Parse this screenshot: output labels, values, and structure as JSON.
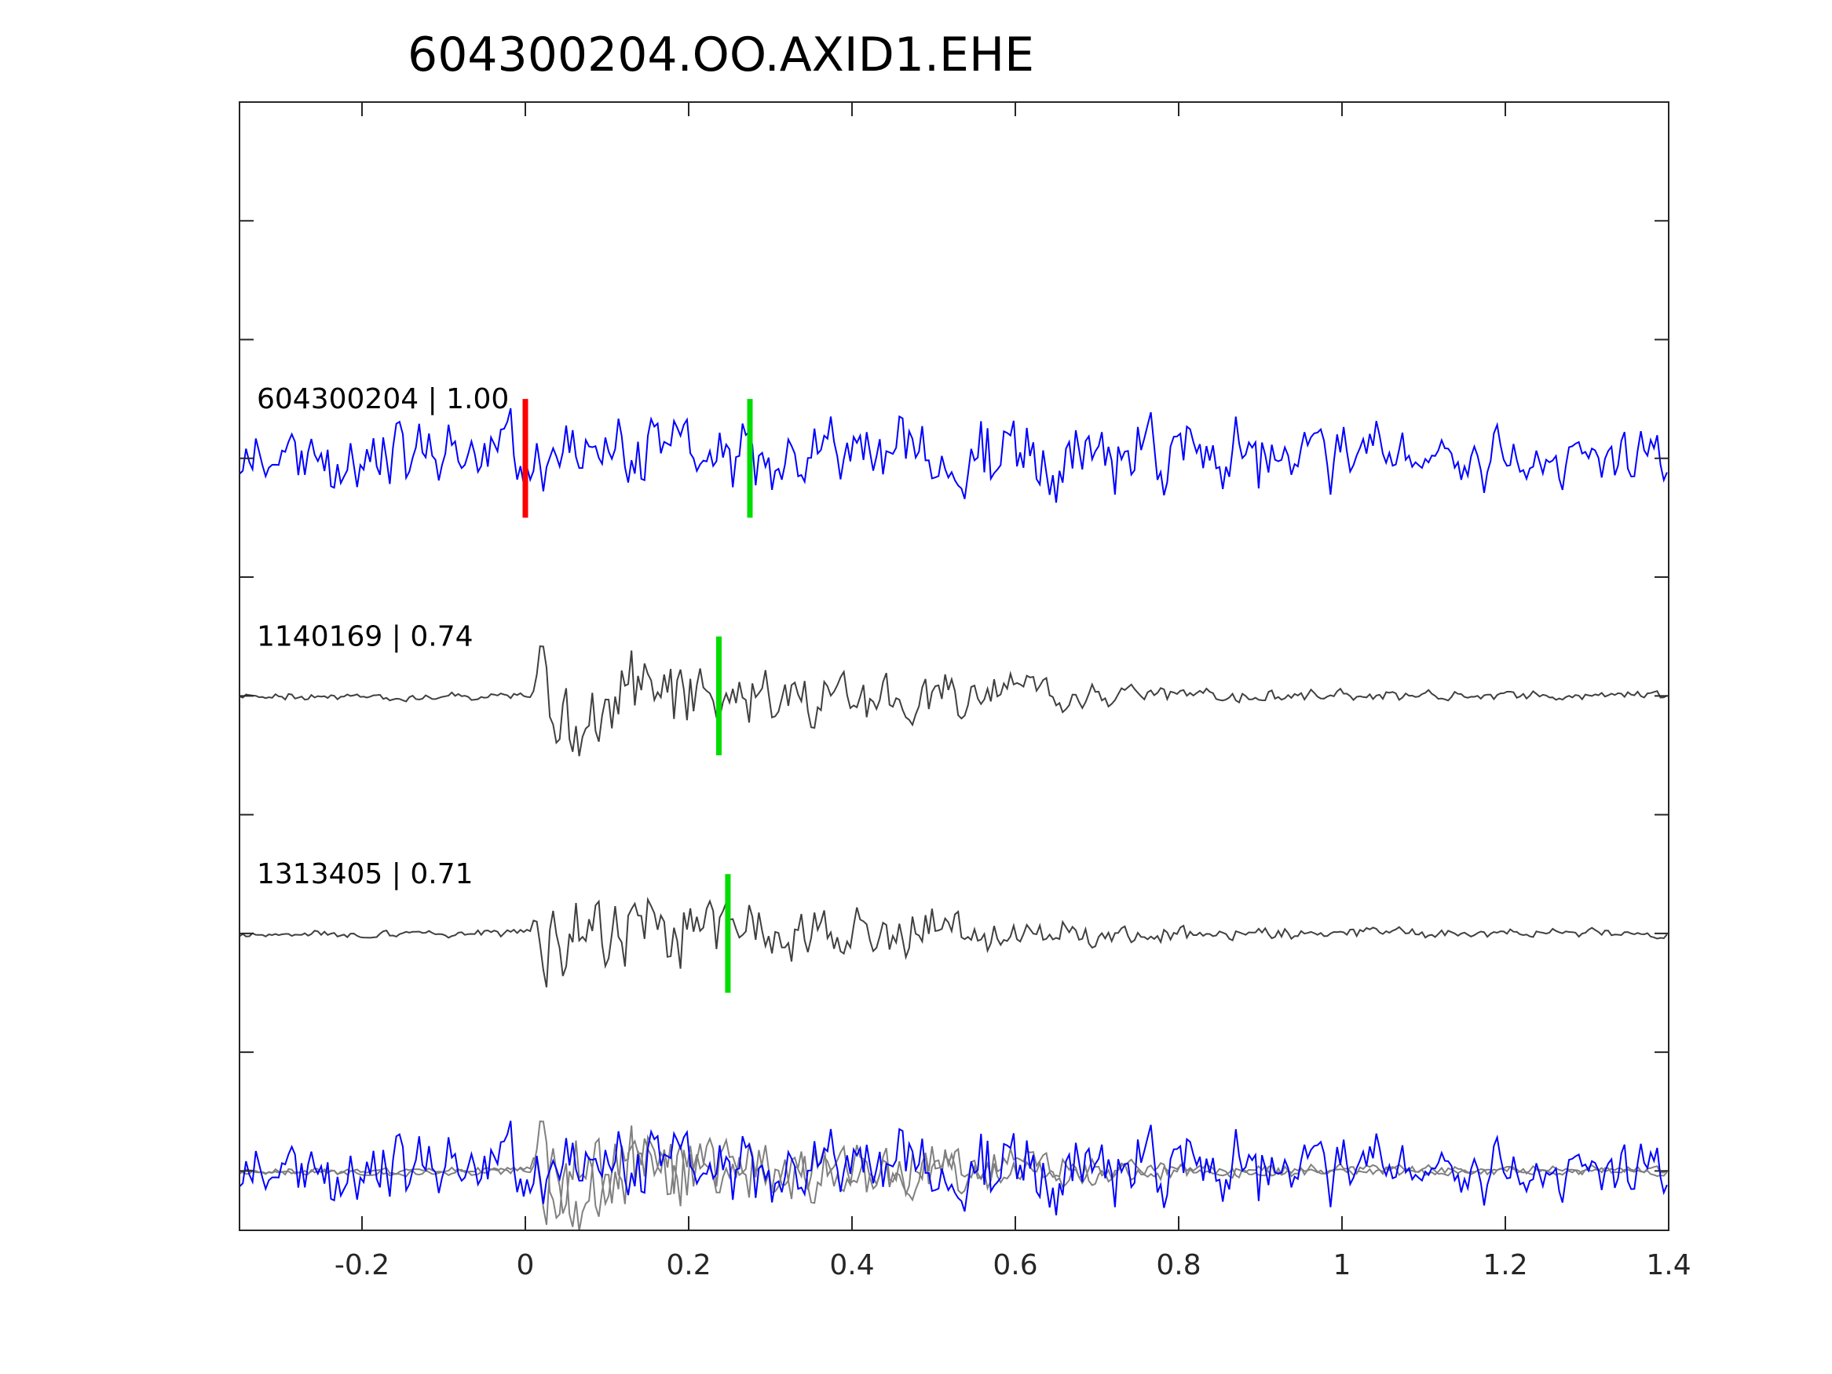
{
  "colors": {
    "main_trace": "#0000ff",
    "template_trace": "#404040",
    "overlay_template": "#808080",
    "pick_p": "#ff0000",
    "pick_s": "#00dd00",
    "axes": "#262626"
  },
  "chart_data": {
    "type": "line",
    "title": "604300204.OO.AXID1.EHE",
    "xlabel": "",
    "ylabel": "",
    "xlim": [
      -0.35,
      1.4
    ],
    "xticks": [
      -0.2,
      0,
      0.2,
      0.4,
      0.6,
      0.8,
      1,
      1.2,
      1.4
    ],
    "xtick_labels": [
      "-0.2",
      "0",
      "0.2",
      "0.4",
      "0.6",
      "0.8",
      "1",
      "1.2",
      "1.4"
    ],
    "ylim": [
      -0.5,
      9
    ],
    "yticks": [
      0,
      1,
      2,
      3,
      4,
      5,
      6,
      7,
      8
    ],
    "ytick_labels": [],
    "grid": false,
    "series": [
      {
        "name": "",
        "label": "604300204 | 1.00",
        "role": "main",
        "offset": 6,
        "amp": 1,
        "seed": 11,
        "style": "noisy",
        "onset": 0.0,
        "p_pick": 0.0,
        "s_pick": 0.275
      },
      {
        "name": "",
        "label": "1140169 | 0.74",
        "role": "template",
        "offset": 4,
        "amp": 1,
        "seed": 23,
        "style": "event",
        "onset": 0.01,
        "s_pick": 0.237
      },
      {
        "name": "",
        "label": "1313405 | 0.71",
        "role": "template",
        "offset": 2,
        "amp": 1,
        "seed": 37,
        "style": "event",
        "onset": 0.01,
        "s_pick": 0.248
      }
    ],
    "overlay": {
      "offset": 0
    }
  }
}
